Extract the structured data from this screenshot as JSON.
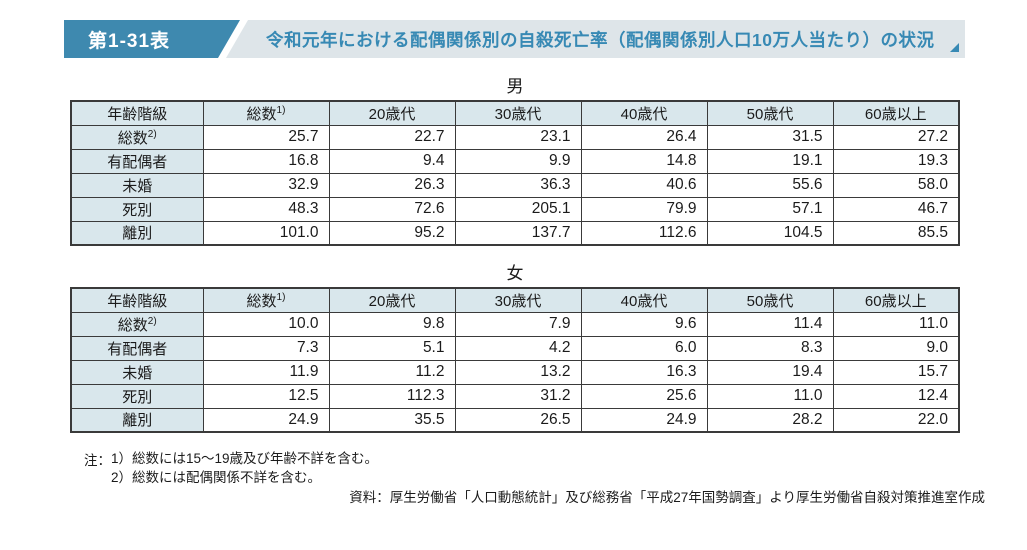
{
  "header": {
    "label": "第1-31表",
    "title": "令和元年における配偶関係別の自殺死亡率（配偶関係別人口10万人当たり）の状況"
  },
  "tables": [
    {
      "caption": "男",
      "header": {
        "age_class": "年齢階級",
        "total": "総数",
        "total_sup": "1)",
        "cols": [
          "20歳代",
          "30歳代",
          "40歳代",
          "50歳代",
          "60歳以上"
        ]
      },
      "rows": [
        {
          "label": "総数",
          "label_sup": "2)",
          "values": [
            "25.7",
            "22.7",
            "23.1",
            "26.4",
            "31.5",
            "27.2"
          ]
        },
        {
          "label": "有配偶者",
          "values": [
            "16.8",
            "9.4",
            "9.9",
            "14.8",
            "19.1",
            "19.3"
          ]
        },
        {
          "label": "未婚",
          "values": [
            "32.9",
            "26.3",
            "36.3",
            "40.6",
            "55.6",
            "58.0"
          ]
        },
        {
          "label": "死別",
          "values": [
            "48.3",
            "72.6",
            "205.1",
            "79.9",
            "57.1",
            "46.7"
          ]
        },
        {
          "label": "離別",
          "values": [
            "101.0",
            "95.2",
            "137.7",
            "112.6",
            "104.5",
            "85.5"
          ]
        }
      ]
    },
    {
      "caption": "女",
      "header": {
        "age_class": "年齢階級",
        "total": "総数",
        "total_sup": "1)",
        "cols": [
          "20歳代",
          "30歳代",
          "40歳代",
          "50歳代",
          "60歳以上"
        ]
      },
      "rows": [
        {
          "label": "総数",
          "label_sup": "2)",
          "values": [
            "10.0",
            "9.8",
            "7.9",
            "9.6",
            "11.4",
            "11.0"
          ]
        },
        {
          "label": "有配偶者",
          "values": [
            "7.3",
            "5.1",
            "4.2",
            "6.0",
            "8.3",
            "9.0"
          ]
        },
        {
          "label": "未婚",
          "values": [
            "11.9",
            "11.2",
            "13.2",
            "16.3",
            "19.4",
            "15.7"
          ]
        },
        {
          "label": "死別",
          "values": [
            "12.5",
            "112.3",
            "31.2",
            "25.6",
            "11.0",
            "12.4"
          ]
        },
        {
          "label": "離別",
          "values": [
            "24.9",
            "35.5",
            "26.5",
            "24.9",
            "28.2",
            "22.0"
          ]
        }
      ]
    }
  ],
  "notes": {
    "prefix": "注：",
    "items": [
      "1）総数には15～19歳及び年齢不詳を含む。",
      "2）総数には配偶関係不詳を含む。"
    ]
  },
  "source": "資料：厚生労働省「人口動態統計」及び総務省「平成27年国勢調査」より厚生労働省自殺対策推進室作成",
  "colors": {
    "accent_blue": "#3e89af",
    "title_text_blue": "#3789b4",
    "strip_bg": "#dee5e9",
    "cell_header_bg": "#d9e7ec",
    "border": "#3a3a3a"
  }
}
